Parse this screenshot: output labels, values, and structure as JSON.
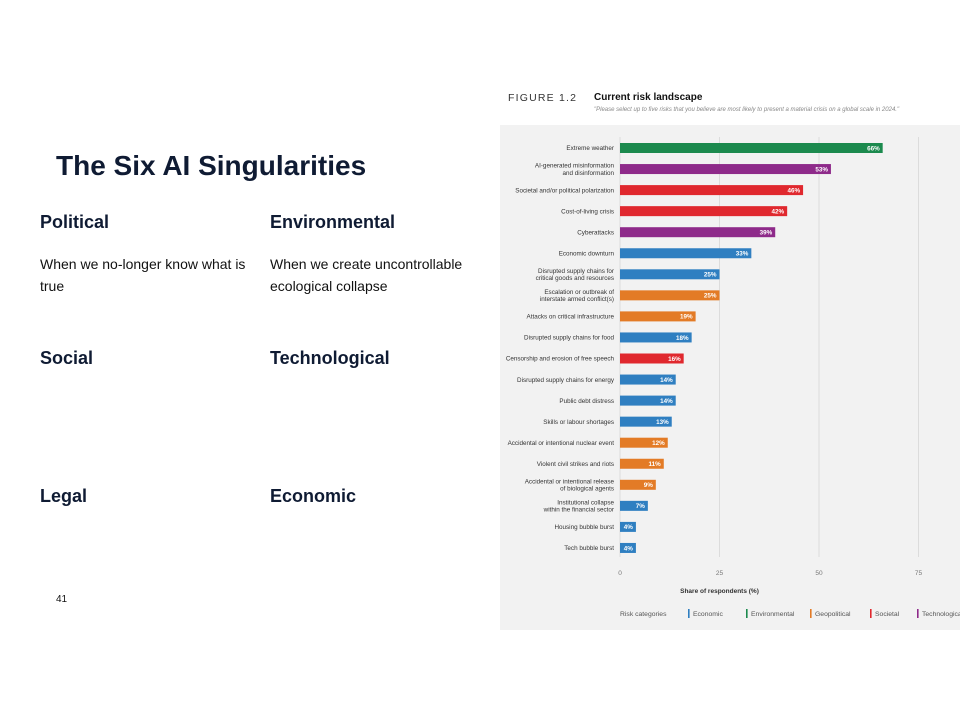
{
  "slide": {
    "title": "The Six AI Singularities",
    "page_number": "41",
    "categories": [
      {
        "name": "Political",
        "description": "When we no-longer know what is true"
      },
      {
        "name": "Environmental",
        "description": "When we create uncontrollable ecological collapse"
      },
      {
        "name": "Social",
        "description": ""
      },
      {
        "name": "Technological",
        "description": ""
      },
      {
        "name": "Legal",
        "description": ""
      },
      {
        "name": "Economic",
        "description": ""
      }
    ]
  },
  "figure": {
    "label": "FIGURE 1.2",
    "title": "Current risk landscape",
    "subtitle": "\"Please select up to five risks that you believe are most likely to present a material crisis on a global scale in 2024.\""
  },
  "colors": {
    "Economic": "#2f7fc1",
    "Environmental": "#1c8a4e",
    "Geopolitical": "#e37b26",
    "Societal": "#e0282e",
    "Technological": "#8e2a8a"
  },
  "chart_data": {
    "type": "bar",
    "orientation": "horizontal",
    "xlabel": "Share of respondents (%)",
    "xlim": [
      0,
      100
    ],
    "xticks": [
      0,
      25,
      50,
      75
    ],
    "grid": true,
    "legend_title": "Risk categories",
    "legend": [
      "Economic",
      "Environmental",
      "Geopolitical",
      "Societal",
      "Technological"
    ],
    "legend_placement": "bottom",
    "bars": [
      {
        "label": [
          "Extreme weather"
        ],
        "value": 66,
        "value_label": "66%",
        "category": "Environmental"
      },
      {
        "label": [
          "AI-generated misinformation",
          "and disinformation"
        ],
        "value": 53,
        "value_label": "53%",
        "category": "Technological"
      },
      {
        "label": [
          "Societal and/or political polarization"
        ],
        "value": 46,
        "value_label": "46%",
        "category": "Societal"
      },
      {
        "label": [
          "Cost-of-living crisis"
        ],
        "value": 42,
        "value_label": "42%",
        "category": "Societal"
      },
      {
        "label": [
          "Cyberattacks"
        ],
        "value": 39,
        "value_label": "39%",
        "category": "Technological"
      },
      {
        "label": [
          "Economic downturn"
        ],
        "value": 33,
        "value_label": "33%",
        "category": "Economic"
      },
      {
        "label": [
          "Disrupted supply chains for",
          "critical goods and resources"
        ],
        "value": 25,
        "value_label": "25%",
        "category": "Economic"
      },
      {
        "label": [
          "Escalation or outbreak of",
          "interstate armed conflict(s)"
        ],
        "value": 25,
        "value_label": "25%",
        "category": "Geopolitical"
      },
      {
        "label": [
          "Attacks on critical infrastructure"
        ],
        "value": 19,
        "value_label": "19%",
        "category": "Geopolitical"
      },
      {
        "label": [
          "Disrupted supply chains for food"
        ],
        "value": 18,
        "value_label": "18%",
        "category": "Economic"
      },
      {
        "label": [
          "Censorship and erosion of free speech"
        ],
        "value": 16,
        "value_label": "16%",
        "category": "Societal"
      },
      {
        "label": [
          "Disrupted supply chains for energy"
        ],
        "value": 14,
        "value_label": "14%",
        "category": "Economic"
      },
      {
        "label": [
          "Public debt distress"
        ],
        "value": 14,
        "value_label": "14%",
        "category": "Economic"
      },
      {
        "label": [
          "Skills or labour shortages"
        ],
        "value": 13,
        "value_label": "13%",
        "category": "Economic"
      },
      {
        "label": [
          "Accidental or intentional nuclear event"
        ],
        "value": 12,
        "value_label": "12%",
        "category": "Geopolitical"
      },
      {
        "label": [
          "Violent civil strikes and riots"
        ],
        "value": 11,
        "value_label": "11%",
        "category": "Geopolitical"
      },
      {
        "label": [
          "Accidental or intentional release",
          "of biological agents"
        ],
        "value": 9,
        "value_label": "9%",
        "category": "Geopolitical"
      },
      {
        "label": [
          "Institutional collapse",
          "within the financial sector"
        ],
        "value": 7,
        "value_label": "7%",
        "category": "Economic"
      },
      {
        "label": [
          "Housing bubble burst"
        ],
        "value": 4,
        "value_label": "4%",
        "category": "Economic"
      },
      {
        "label": [
          "Tech bubble burst"
        ],
        "value": 4,
        "value_label": "4%",
        "category": "Economic"
      }
    ]
  }
}
